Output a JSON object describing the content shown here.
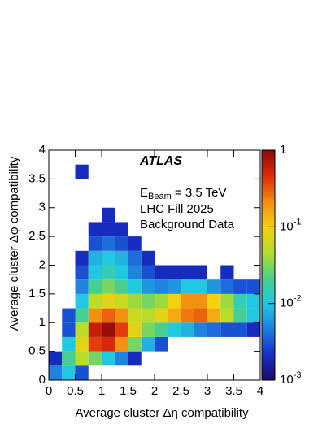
{
  "chart_data": {
    "type": "heatmap",
    "xlabel": "Average cluster Δη compatibility",
    "ylabel": "Average cluster Δφ compatibility",
    "experiment": "ATLAS",
    "beam": {
      "base": "E",
      "sub": "Beam",
      "rest": " = 3.5 TeV"
    },
    "annotations": [
      "LHC Fill 2025",
      "Background Data"
    ],
    "xbins": [
      0,
      0.25,
      0.5,
      0.75,
      1,
      1.25,
      1.5,
      1.75,
      2,
      2.25,
      2.5,
      2.75,
      3,
      3.25,
      3.5,
      3.75,
      4
    ],
    "ybins": [
      0,
      0.25,
      0.5,
      0.75,
      1,
      1.25,
      1.5,
      1.75,
      2,
      2.25,
      2.5,
      2.75,
      3,
      3.25,
      3.5,
      3.75,
      4
    ],
    "z": [
      [
        0.005,
        0.01,
        0.003,
        null,
        null,
        null,
        null,
        null,
        null,
        null,
        null,
        null,
        null,
        null,
        null,
        null
      ],
      [
        0.002,
        0.02,
        0.05,
        0.03,
        0.01,
        0.005,
        0.002,
        null,
        null,
        null,
        null,
        null,
        null,
        null,
        null,
        null
      ],
      [
        null,
        0.01,
        0.08,
        0.4,
        0.5,
        0.2,
        0.03,
        0.008,
        0.003,
        null,
        null,
        null,
        null,
        null,
        null,
        null
      ],
      [
        null,
        0.003,
        0.05,
        0.6,
        0.9,
        0.4,
        0.08,
        0.03,
        0.02,
        0.01,
        0.008,
        0.005,
        0.004,
        0.003,
        0.003,
        0.002
      ],
      [
        null,
        0.003,
        0.02,
        0.2,
        0.3,
        0.2,
        0.06,
        0.05,
        0.08,
        0.15,
        0.25,
        0.3,
        0.15,
        0.05,
        0.02,
        0.01
      ],
      [
        null,
        null,
        0.01,
        0.05,
        0.08,
        0.06,
        0.04,
        0.03,
        0.04,
        0.1,
        0.2,
        0.2,
        0.1,
        0.04,
        0.015,
        0.01
      ],
      [
        null,
        null,
        0.005,
        0.02,
        0.03,
        0.02,
        0.01,
        0.006,
        0.005,
        0.006,
        0.01,
        0.01,
        0.006,
        0.004,
        0.003,
        0.003
      ],
      [
        null,
        null,
        0.003,
        0.01,
        0.015,
        0.01,
        0.005,
        0.003,
        0.002,
        0.002,
        0.002,
        0.002,
        null,
        0.002,
        null,
        null
      ],
      [
        null,
        null,
        0.002,
        0.008,
        0.01,
        0.008,
        0.004,
        0.002,
        null,
        null,
        null,
        null,
        null,
        null,
        null,
        null
      ],
      [
        null,
        null,
        null,
        0.003,
        0.004,
        0.003,
        0.002,
        null,
        null,
        null,
        null,
        null,
        null,
        null,
        null,
        null
      ],
      [
        null,
        null,
        null,
        0.002,
        0.002,
        0.002,
        null,
        null,
        null,
        null,
        null,
        null,
        null,
        null,
        null,
        null
      ],
      [
        null,
        null,
        null,
        null,
        0.002,
        null,
        null,
        null,
        null,
        null,
        null,
        null,
        null,
        null,
        null,
        null
      ],
      [
        null,
        null,
        null,
        null,
        null,
        null,
        null,
        null,
        null,
        null,
        null,
        null,
        null,
        null,
        null,
        null
      ],
      [
        null,
        null,
        null,
        null,
        null,
        null,
        null,
        null,
        null,
        null,
        null,
        null,
        null,
        null,
        null,
        null
      ],
      [
        null,
        null,
        0.002,
        null,
        null,
        null,
        null,
        null,
        null,
        null,
        null,
        null,
        null,
        null,
        null,
        null
      ],
      [
        null,
        null,
        null,
        null,
        null,
        null,
        null,
        null,
        null,
        null,
        null,
        null,
        null,
        null,
        null,
        null
      ]
    ],
    "xlim": [
      0,
      4
    ],
    "ylim": [
      0,
      4
    ],
    "xticks": [
      0,
      0.5,
      1,
      1.5,
      2,
      2.5,
      3,
      3.5,
      4
    ],
    "yticks": [
      0,
      0.5,
      1,
      1.5,
      2,
      2.5,
      3,
      3.5,
      4
    ],
    "zlim": [
      0.001,
      1
    ],
    "zlog": true,
    "zticks": [
      {
        "value": 0.001,
        "label": "10",
        "exponent": "-3"
      },
      {
        "value": 0.01,
        "label": "10",
        "exponent": "-2"
      },
      {
        "value": 0.1,
        "label": "10",
        "exponent": "-1"
      },
      1
    ],
    "colorscale": [
      "#1a0a6e",
      "#1530c8",
      "#1e7de0",
      "#22c8e0",
      "#4ad08a",
      "#b4dc2a",
      "#f5d010",
      "#f58a10",
      "#e02a0a",
      "#8c0a0a"
    ]
  }
}
